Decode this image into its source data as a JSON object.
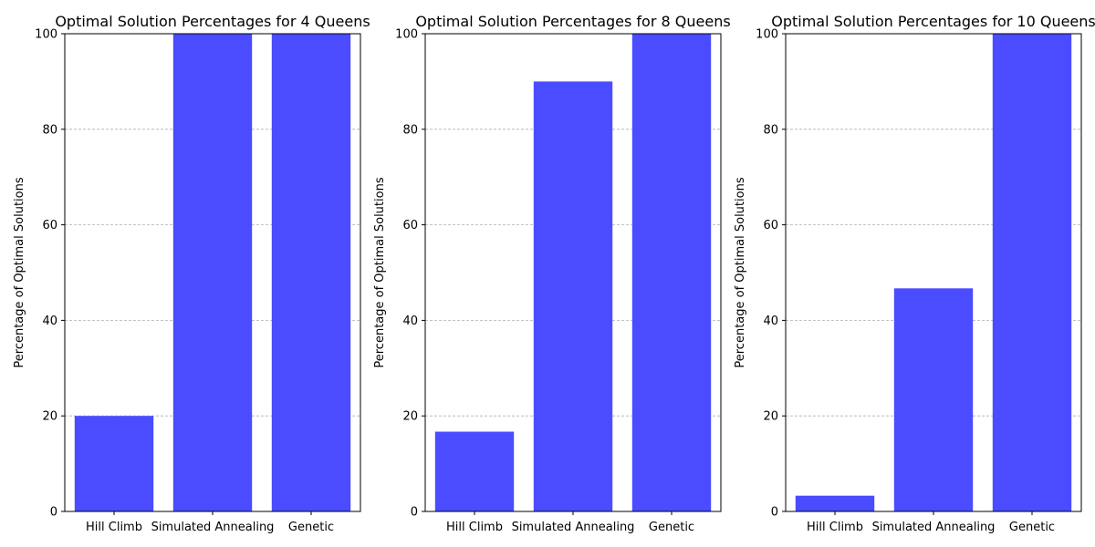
{
  "chart_data": [
    {
      "type": "bar",
      "title": "Optimal Solution Percentages for 4 Queens",
      "xlabel": "",
      "ylabel": "Percentage of Optimal Solutions",
      "categories": [
        "Hill Climb",
        "Simulated Annealing",
        "Genetic"
      ],
      "values": [
        20,
        100,
        100
      ],
      "ylim": [
        0,
        100
      ],
      "yticks": [
        0,
        20,
        40,
        60,
        80,
        100
      ],
      "grid": "y-dashed",
      "bar_color": "#4b4bff"
    },
    {
      "type": "bar",
      "title": "Optimal Solution Percentages for 8 Queens",
      "xlabel": "",
      "ylabel": "Percentage of Optimal Solutions",
      "categories": [
        "Hill Climb",
        "Simulated Annealing",
        "Genetic"
      ],
      "values": [
        16.7,
        90,
        100
      ],
      "ylim": [
        0,
        100
      ],
      "yticks": [
        0,
        20,
        40,
        60,
        80,
        100
      ],
      "grid": "y-dashed",
      "bar_color": "#4b4bff"
    },
    {
      "type": "bar",
      "title": "Optimal Solution Percentages for 10 Queens",
      "xlabel": "",
      "ylabel": "Percentage of Optimal Solutions",
      "categories": [
        "Hill Climb",
        "Simulated Annealing",
        "Genetic"
      ],
      "values": [
        3.3,
        46.7,
        100
      ],
      "ylim": [
        0,
        100
      ],
      "yticks": [
        0,
        20,
        40,
        60,
        80,
        100
      ],
      "grid": "y-dashed",
      "bar_color": "#4b4bff"
    }
  ]
}
